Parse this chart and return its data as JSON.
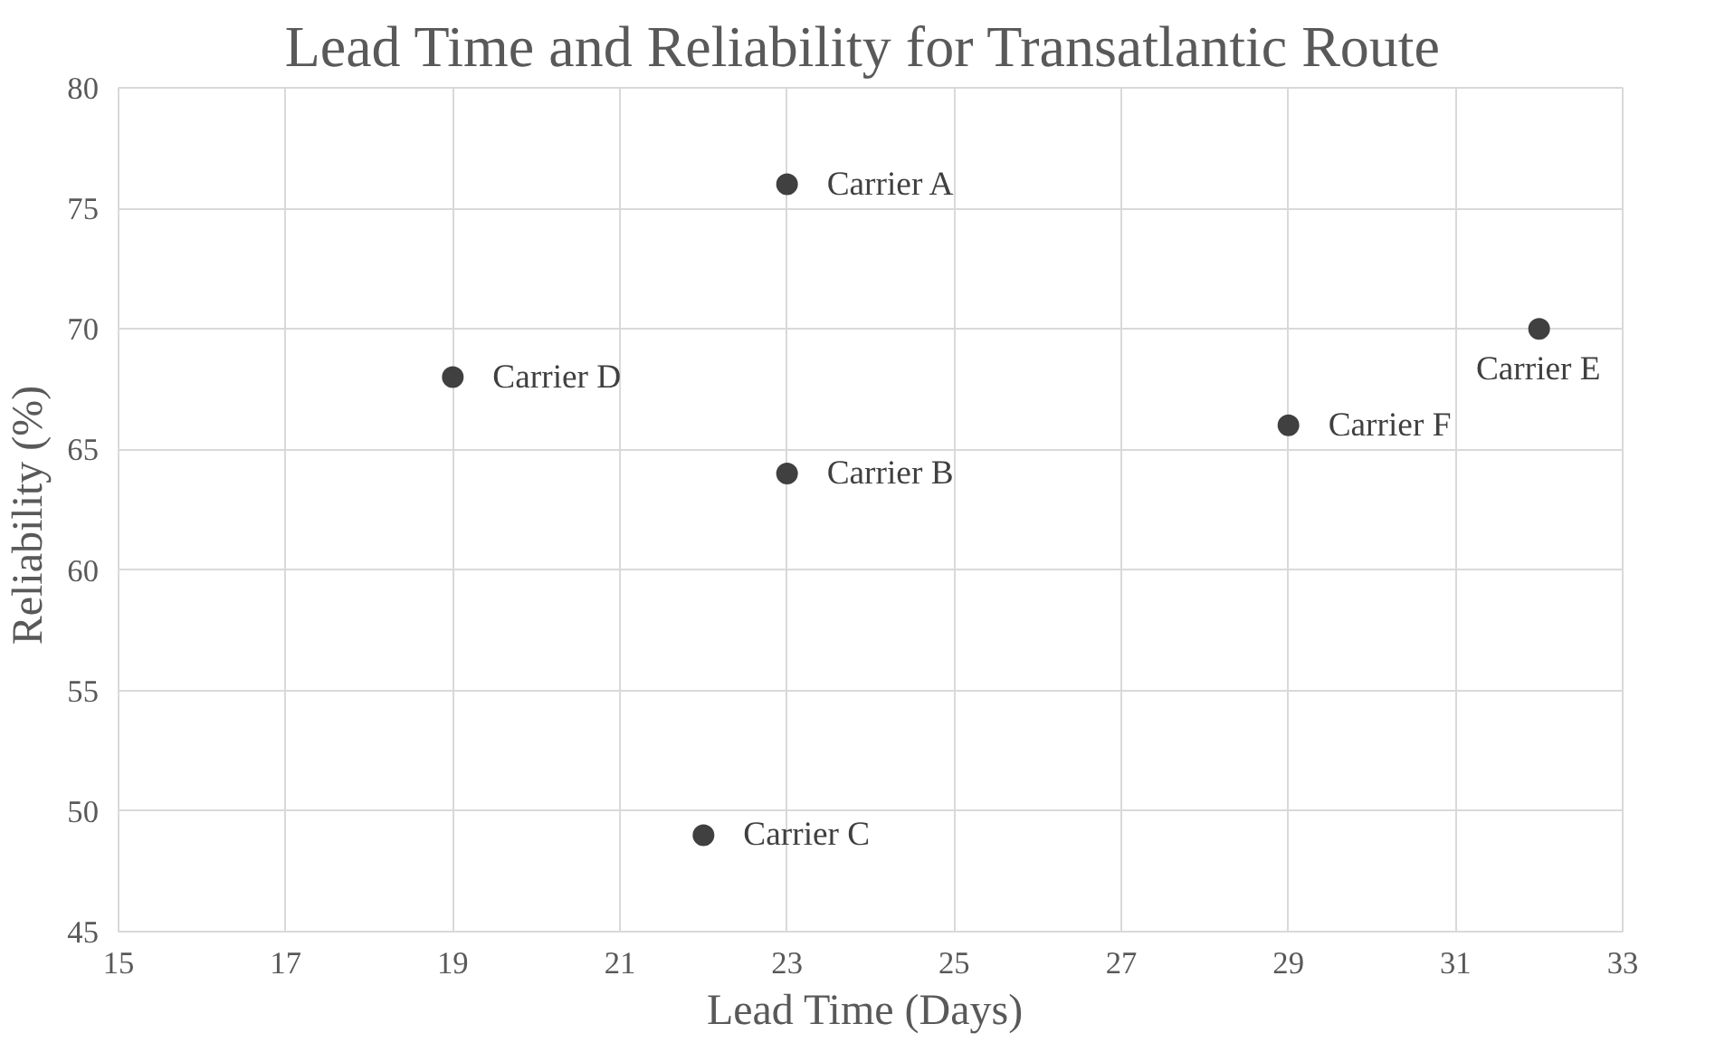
{
  "chart_data": {
    "type": "scatter",
    "title": "Lead Time and Reliability  for Transatlantic Route",
    "xlabel": "Lead Time  (Days)",
    "ylabel": "Reliability  (%)",
    "x": [
      23,
      23,
      22,
      19,
      32,
      29
    ],
    "series": [
      {
        "color": "#404040",
        "values": [
          76,
          64,
          49,
          68,
          70,
          66
        ]
      }
    ],
    "xlim": [
      15,
      33
    ],
    "xticks": [
      15,
      17,
      19,
      21,
      23,
      25,
      27,
      29,
      31,
      33
    ],
    "ylim": [
      45,
      80
    ],
    "yticks": [
      45,
      50,
      55,
      60,
      65,
      70,
      75,
      80
    ],
    "grid": true,
    "marker": "circle",
    "annotations": [
      {
        "text": "Carrier A",
        "x": 23,
        "y": 76
      },
      {
        "text": "Carrier B",
        "x": 23,
        "y": 64
      },
      {
        "text": "Carrier C",
        "x": 22,
        "y": 49
      },
      {
        "text": "Carrier D",
        "x": 19,
        "y": 68
      },
      {
        "text": "Carrier E",
        "x": 32,
        "y": 70
      },
      {
        "text": "Carrier F",
        "x": 29,
        "y": 66
      }
    ]
  }
}
